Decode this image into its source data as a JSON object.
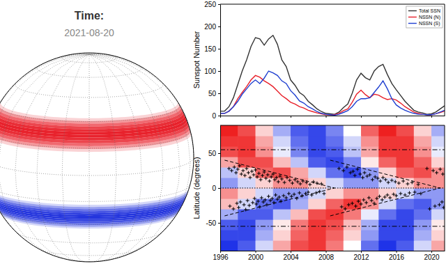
{
  "globe": {
    "title": "Time:",
    "date": "2021-08-20",
    "bands": [
      {
        "lat_range": [
          13,
          32
        ],
        "color": "#e8202a"
      },
      {
        "lat_range": [
          -33,
          -17
        ],
        "color": "#2233dd"
      }
    ]
  },
  "chart_data": [
    {
      "type": "line",
      "ylabel": "Sunspot Number",
      "x": [
        1996,
        1996.5,
        1997,
        1997.5,
        1998,
        1998.5,
        1999,
        1999.5,
        2000,
        2000.5,
        2001,
        2001.5,
        2002,
        2002.5,
        2003,
        2003.5,
        2004,
        2004.5,
        2005,
        2005.5,
        2006,
        2006.5,
        2007,
        2007.5,
        2008,
        2008.5,
        2009,
        2009.5,
        2010,
        2010.5,
        2011,
        2011.5,
        2012,
        2012.5,
        2013,
        2013.5,
        2014,
        2014.5,
        2015,
        2015.5,
        2016,
        2016.5,
        2017,
        2017.5,
        2018,
        2018.5,
        2019,
        2019.5,
        2020,
        2020.5,
        2021,
        2021.5
      ],
      "series": [
        {
          "name": "Total SSN",
          "color": "#333333",
          "values": [
            10,
            10,
            20,
            40,
            70,
            100,
            125,
            155,
            175,
            172,
            158,
            172,
            180,
            160,
            125,
            110,
            80,
            68,
            52,
            45,
            32,
            24,
            15,
            9,
            5,
            4,
            3,
            8,
            18,
            26,
            50,
            80,
            95,
            85,
            80,
            100,
            110,
            115,
            92,
            72,
            58,
            45,
            32,
            22,
            12,
            8,
            6,
            3,
            4,
            8,
            15,
            22
          ]
        },
        {
          "name": "NSSN (N)",
          "color": "#e8202a",
          "values": [
            5,
            5,
            10,
            20,
            38,
            52,
            65,
            80,
            90,
            86,
            78,
            72,
            65,
            55,
            45,
            38,
            30,
            26,
            20,
            17,
            12,
            9,
            6,
            4,
            2,
            2,
            2,
            5,
            11,
            15,
            30,
            48,
            57,
            47,
            40,
            48,
            46,
            40,
            36,
            38,
            35,
            28,
            20,
            14,
            8,
            5,
            3,
            2,
            2,
            4,
            7,
            10
          ]
        },
        {
          "name": "NSSN (S)",
          "color": "#1f3fd0",
          "values": [
            5,
            5,
            10,
            20,
            32,
            48,
            60,
            72,
            80,
            72,
            84,
            100,
            96,
            90,
            78,
            72,
            56,
            46,
            33,
            28,
            20,
            15,
            9,
            5,
            3,
            2,
            1,
            3,
            7,
            11,
            20,
            32,
            38,
            38,
            40,
            52,
            64,
            78,
            60,
            38,
            24,
            17,
            12,
            8,
            5,
            3,
            3,
            2,
            2,
            4,
            8,
            12
          ]
        }
      ],
      "xlim": [
        1996,
        2021.5
      ],
      "ylim": [
        0,
        250
      ],
      "xticks": [
        1996,
        2000,
        2004,
        2008,
        2012,
        2016,
        2020
      ],
      "yticks": [
        0,
        50,
        100,
        150,
        200,
        250
      ],
      "legend": "upper right",
      "tick_labels": "y"
    },
    {
      "type": "scatter",
      "ylabel": "Latitude (degrees)",
      "xlim": [
        1996,
        2021.5
      ],
      "ylim": [
        -90,
        90
      ],
      "xticks": [
        1996,
        2000,
        2004,
        2008,
        2012,
        2016,
        2020
      ],
      "yticks": [
        -50,
        0,
        50
      ],
      "heatmap": {
        "x_edges": [
          1996,
          1998,
          2000,
          2002,
          2004,
          2006,
          2008,
          2010,
          2012,
          2014,
          2016,
          2018,
          2020,
          2022
        ],
        "y_edges": [
          -90,
          -75,
          -60,
          -45,
          -30,
          -15,
          0,
          15,
          30,
          45,
          60,
          75,
          90
        ],
        "color_range": [
          -1,
          1
        ],
        "values": [
          [
            -1,
            -0.8,
            -0.2,
            0.4,
            0.8,
            0.9,
            0.6,
            0,
            -0.7,
            -1,
            -0.8,
            -0.2,
            0.4
          ],
          [
            -0.9,
            -0.9,
            -0.4,
            0.2,
            0.7,
            0.9,
            0.7,
            0.2,
            -0.5,
            -0.9,
            -0.9,
            -0.4,
            0.2
          ],
          [
            -0.8,
            -0.9,
            -0.5,
            0.1,
            0.6,
            0.9,
            0.8,
            0.3,
            -0.4,
            -0.9,
            -0.9,
            -0.5,
            0.1
          ],
          [
            -0.4,
            -0.8,
            -0.8,
            -0.3,
            0.3,
            0.8,
            0.9,
            0.6,
            -0.1,
            -0.7,
            -0.9,
            -0.7,
            -0.2
          ],
          [
            0.3,
            -0.2,
            -0.7,
            -0.8,
            -0.4,
            0.2,
            0.7,
            0.9,
            0.5,
            -0.2,
            -0.7,
            -0.8,
            -0.5
          ],
          [
            0.5,
            0.2,
            -0.2,
            -0.5,
            -0.5,
            -0.2,
            0.2,
            0.5,
            0.5,
            0.2,
            -0.2,
            -0.5,
            -0.5
          ],
          [
            -0.5,
            -0.2,
            0.2,
            0.5,
            0.5,
            0.2,
            -0.2,
            -0.5,
            -0.5,
            -0.2,
            0.2,
            0.5,
            0.5
          ],
          [
            -0.3,
            0.2,
            0.7,
            0.8,
            0.4,
            -0.2,
            -0.7,
            -0.9,
            -0.5,
            0.2,
            0.7,
            0.8,
            0.5
          ],
          [
            0.4,
            0.8,
            0.8,
            0.3,
            -0.3,
            -0.8,
            -0.9,
            -0.6,
            0.1,
            0.7,
            0.9,
            0.7,
            0.2
          ],
          [
            0.8,
            0.9,
            0.5,
            -0.1,
            -0.6,
            -0.9,
            -0.8,
            -0.3,
            0.4,
            0.9,
            0.9,
            0.5,
            -0.1
          ],
          [
            0.9,
            0.9,
            0.4,
            -0.2,
            -0.7,
            -0.9,
            -0.7,
            -0.2,
            0.5,
            0.9,
            0.9,
            0.4,
            -0.2
          ],
          [
            1,
            0.8,
            0.2,
            -0.4,
            -0.8,
            -0.9,
            -0.6,
            0,
            0.7,
            1,
            0.8,
            0.2,
            -0.4
          ]
        ]
      },
      "series": [
        {
          "type": "line",
          "line_style": "dashed",
          "color": "#000000",
          "x": [
            1996.5,
            2009
          ],
          "values": [
            40,
            0
          ]
        },
        {
          "type": "line",
          "line_style": "dashed",
          "color": "#000000",
          "x": [
            1996.5,
            2009
          ],
          "values": [
            -40,
            0
          ]
        },
        {
          "type": "line",
          "line_style": "dashed",
          "color": "#000000",
          "x": [
            2008.5,
            2021
          ],
          "values": [
            40,
            0
          ]
        },
        {
          "type": "line",
          "line_style": "dashed",
          "color": "#000000",
          "x": [
            2008.5,
            2021
          ],
          "values": [
            -40,
            0
          ]
        },
        {
          "type": "line",
          "line_style": "dashdot",
          "color": "#000000",
          "x": [
            1996,
            2021.5
          ],
          "values": [
            55,
            55
          ]
        },
        {
          "type": "line",
          "line_style": "dashdot",
          "color": "#000000",
          "x": [
            1996,
            2021.5
          ],
          "values": [
            -55,
            -55
          ]
        },
        {
          "type": "line",
          "line_style": "dotted",
          "color": "#000000",
          "x": [
            1996,
            2021.5
          ],
          "values": [
            0,
            0
          ]
        },
        {
          "type": "scatter",
          "marker": "plus",
          "color": "#000000",
          "x": [
            1997,
            1997.3,
            1997.6,
            1997.8,
            1998,
            1998.2,
            1998.4,
            1998.6,
            1998.8,
            1999,
            1999.2,
            1999.4,
            1999.6,
            1999.8,
            2000,
            2000.2,
            2000.4,
            2000.6,
            2000.8,
            2001,
            2001.2,
            2001.4,
            2001.6,
            2001.8,
            2002,
            2002.2,
            2002.4,
            2002.6,
            2002.8,
            2003,
            2003.3,
            2003.6,
            2003.9,
            2004.2,
            2004.5,
            2004.8,
            2005.1,
            2005.4,
            2005.8,
            2006.2,
            2006.6,
            2007,
            2007.5,
            1997.1,
            1997.5,
            1997.9,
            1998.1,
            1998.3,
            1998.7,
            1998.9,
            1999.1,
            1999.3,
            1999.7,
            1999.9,
            2000.1,
            2000.3,
            2000.5,
            2000.7,
            2000.9,
            2001.1,
            2001.3,
            2001.5,
            2001.7,
            2001.9,
            2002.1,
            2002.3,
            2002.5,
            2002.7,
            2002.9,
            2003.2,
            2003.5,
            2003.8,
            2004.1,
            2004.4,
            2004.7,
            2005,
            2005.3,
            2005.7,
            2006,
            2006.4,
            2006.9,
            2007.3,
            2007.8,
            2009.5,
            2010,
            2010.4,
            2010.8,
            2011.1,
            2011.3,
            2011.6,
            2011.9,
            2012.2,
            2012.4,
            2012.7,
            2013,
            2013.3,
            2013.6,
            2013.9,
            2014.2,
            2014.5,
            2014.8,
            2015.1,
            2015.5,
            2015.9,
            2016.3,
            2016.8,
            2017.3,
            2017.8,
            2018.5,
            2009.8,
            2010.2,
            2010.6,
            2011,
            2011.4,
            2011.7,
            2012,
            2012.3,
            2012.6,
            2012.9,
            2013.2,
            2013.5,
            2013.8,
            2014.1,
            2014.4,
            2014.7,
            2015,
            2015.3,
            2015.7,
            2016,
            2016.5,
            2017,
            2017.5,
            2018.1,
            2018.8,
            2019.5,
            2020.2,
            2020.6,
            2021,
            2021.3,
            2019.8,
            2020.4,
            2020.9,
            2021.2,
            2021.4
          ],
          "values": [
            28,
            25,
            30,
            22,
            27,
            32,
            20,
            25,
            18,
            28,
            22,
            15,
            24,
            19,
            26,
            16,
            21,
            12,
            18,
            23,
            14,
            19,
            10,
            16,
            20,
            12,
            15,
            9,
            17,
            13,
            8,
            15,
            11,
            7,
            12,
            9,
            6,
            10,
            8,
            5,
            9,
            7,
            6,
            -26,
            -30,
            -22,
            -28,
            -20,
            -24,
            -31,
            -18,
            -25,
            -21,
            -15,
            -23,
            -19,
            -27,
            -14,
            -20,
            -17,
            -24,
            -12,
            -18,
            -15,
            -21,
            -10,
            -16,
            -13,
            -19,
            -11,
            -14,
            -8,
            -12,
            -9,
            -15,
            -7,
            -11,
            -8,
            -6,
            -10,
            -7,
            -5,
            -8,
            28,
            25,
            30,
            22,
            24,
            18,
            27,
            20,
            15,
            22,
            17,
            19,
            12,
            16,
            14,
            10,
            15,
            12,
            8,
            11,
            9,
            7,
            10,
            6,
            8,
            5,
            -27,
            -30,
            -24,
            -22,
            -26,
            -19,
            -23,
            -17,
            -21,
            -14,
            -18,
            -22,
            -15,
            -12,
            -17,
            -13,
            -10,
            -14,
            -9,
            -11,
            -8,
            -10,
            -7,
            -6,
            -8,
            28,
            25,
            22,
            27,
            20,
            -30,
            -26,
            -24,
            -20,
            -28
          ]
        }
      ]
    }
  ]
}
